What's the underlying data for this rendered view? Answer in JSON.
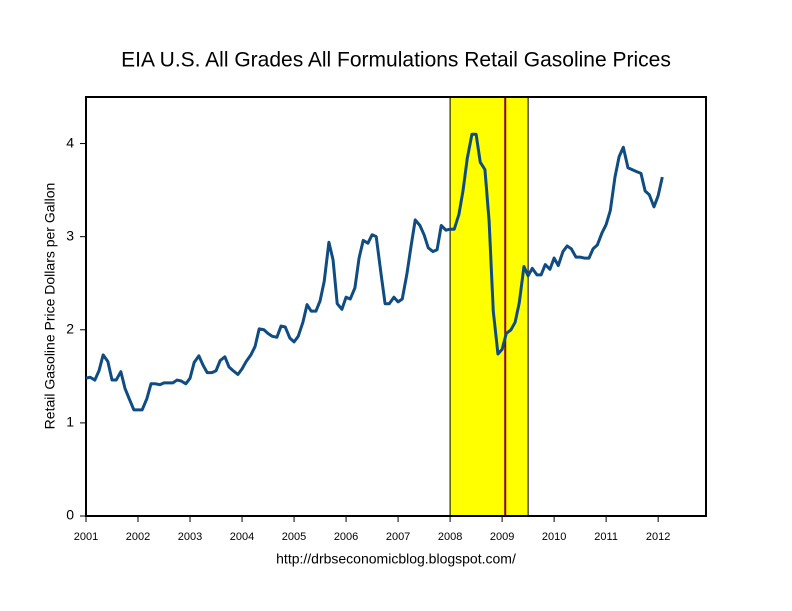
{
  "chart_data": {
    "type": "line",
    "title": "EIA U.S. All Grades All Formulations Retail Gasoline Prices",
    "y_label": "Retail Gasoline Price Dollars per Gallon",
    "x_label": "http://drbseconomicblog.blogspot.com/",
    "x": [
      2001.0,
      2001.08,
      2001.17,
      2001.25,
      2001.33,
      2001.42,
      2001.5,
      2001.58,
      2001.67,
      2001.75,
      2001.83,
      2001.92,
      2002.0,
      2002.08,
      2002.17,
      2002.25,
      2002.33,
      2002.42,
      2002.5,
      2002.58,
      2002.67,
      2002.75,
      2002.83,
      2002.92,
      2003.0,
      2003.08,
      2003.17,
      2003.25,
      2003.33,
      2003.42,
      2003.5,
      2003.58,
      2003.67,
      2003.75,
      2003.83,
      2003.92,
      2004.0,
      2004.08,
      2004.17,
      2004.25,
      2004.33,
      2004.42,
      2004.5,
      2004.58,
      2004.67,
      2004.75,
      2004.83,
      2004.92,
      2005.0,
      2005.08,
      2005.17,
      2005.25,
      2005.33,
      2005.42,
      2005.5,
      2005.58,
      2005.67,
      2005.75,
      2005.83,
      2005.92,
      2006.0,
      2006.08,
      2006.17,
      2006.25,
      2006.33,
      2006.42,
      2006.5,
      2006.58,
      2006.67,
      2006.75,
      2006.83,
      2006.92,
      2007.0,
      2007.08,
      2007.17,
      2007.25,
      2007.33,
      2007.42,
      2007.5,
      2007.58,
      2007.67,
      2007.75,
      2007.83,
      2007.92,
      2008.0,
      2008.08,
      2008.17,
      2008.25,
      2008.33,
      2008.42,
      2008.5,
      2008.58,
      2008.67,
      2008.75,
      2008.83,
      2008.92,
      2009.0,
      2009.08,
      2009.17,
      2009.25,
      2009.33,
      2009.42,
      2009.5,
      2009.58,
      2009.67,
      2009.75,
      2009.83,
      2009.92,
      2010.0,
      2010.08,
      2010.17,
      2010.25,
      2010.33,
      2010.42,
      2010.5,
      2010.58,
      2010.67,
      2010.75,
      2010.83,
      2010.92,
      2011.0,
      2011.08,
      2011.17,
      2011.25,
      2011.33,
      2011.42,
      2011.5,
      2011.58,
      2011.67,
      2011.75,
      2011.83,
      2011.92,
      2012.0,
      2012.08
    ],
    "series": [
      {
        "color": "#0f4c81",
        "values": [
          1.48,
          1.49,
          1.46,
          1.56,
          1.73,
          1.66,
          1.46,
          1.46,
          1.55,
          1.37,
          1.26,
          1.14,
          1.14,
          1.14,
          1.26,
          1.42,
          1.42,
          1.41,
          1.43,
          1.43,
          1.43,
          1.46,
          1.45,
          1.42,
          1.48,
          1.65,
          1.72,
          1.62,
          1.54,
          1.54,
          1.56,
          1.67,
          1.71,
          1.6,
          1.56,
          1.52,
          1.58,
          1.66,
          1.73,
          1.82,
          2.01,
          2.0,
          1.96,
          1.93,
          1.92,
          2.04,
          2.03,
          1.91,
          1.87,
          1.93,
          2.08,
          2.27,
          2.2,
          2.2,
          2.31,
          2.52,
          2.94,
          2.75,
          2.28,
          2.22,
          2.35,
          2.33,
          2.45,
          2.77,
          2.96,
          2.93,
          3.02,
          3.0,
          2.61,
          2.28,
          2.28,
          2.35,
          2.3,
          2.33,
          2.6,
          2.9,
          3.18,
          3.12,
          3.02,
          2.88,
          2.84,
          2.86,
          3.12,
          3.07,
          3.08,
          3.08,
          3.24,
          3.5,
          3.84,
          4.1,
          4.1,
          3.8,
          3.72,
          3.17,
          2.2,
          1.74,
          1.79,
          1.96,
          2.0,
          2.08,
          2.29,
          2.68,
          2.58,
          2.66,
          2.59,
          2.59,
          2.7,
          2.65,
          2.77,
          2.69,
          2.84,
          2.9,
          2.87,
          2.78,
          2.78,
          2.77,
          2.77,
          2.87,
          2.91,
          3.04,
          3.13,
          3.28,
          3.64,
          3.86,
          3.96,
          3.74,
          3.72,
          3.7,
          3.68,
          3.49,
          3.45,
          3.32,
          3.44,
          3.64
        ]
      }
    ],
    "xlim": [
      2001,
      2012.92
    ],
    "xticks": [
      2001,
      2002,
      2003,
      2004,
      2005,
      2006,
      2007,
      2008,
      2009,
      2010,
      2011,
      2012
    ],
    "ylim": [
      0,
      4.5
    ],
    "yticks": [
      0,
      1,
      2,
      3,
      4
    ],
    "shaded_region": {
      "xlim": [
        2008,
        2009.5
      ],
      "color": "#ffff00"
    },
    "vline": {
      "x": 2009.06,
      "color": "#8b0000"
    }
  }
}
